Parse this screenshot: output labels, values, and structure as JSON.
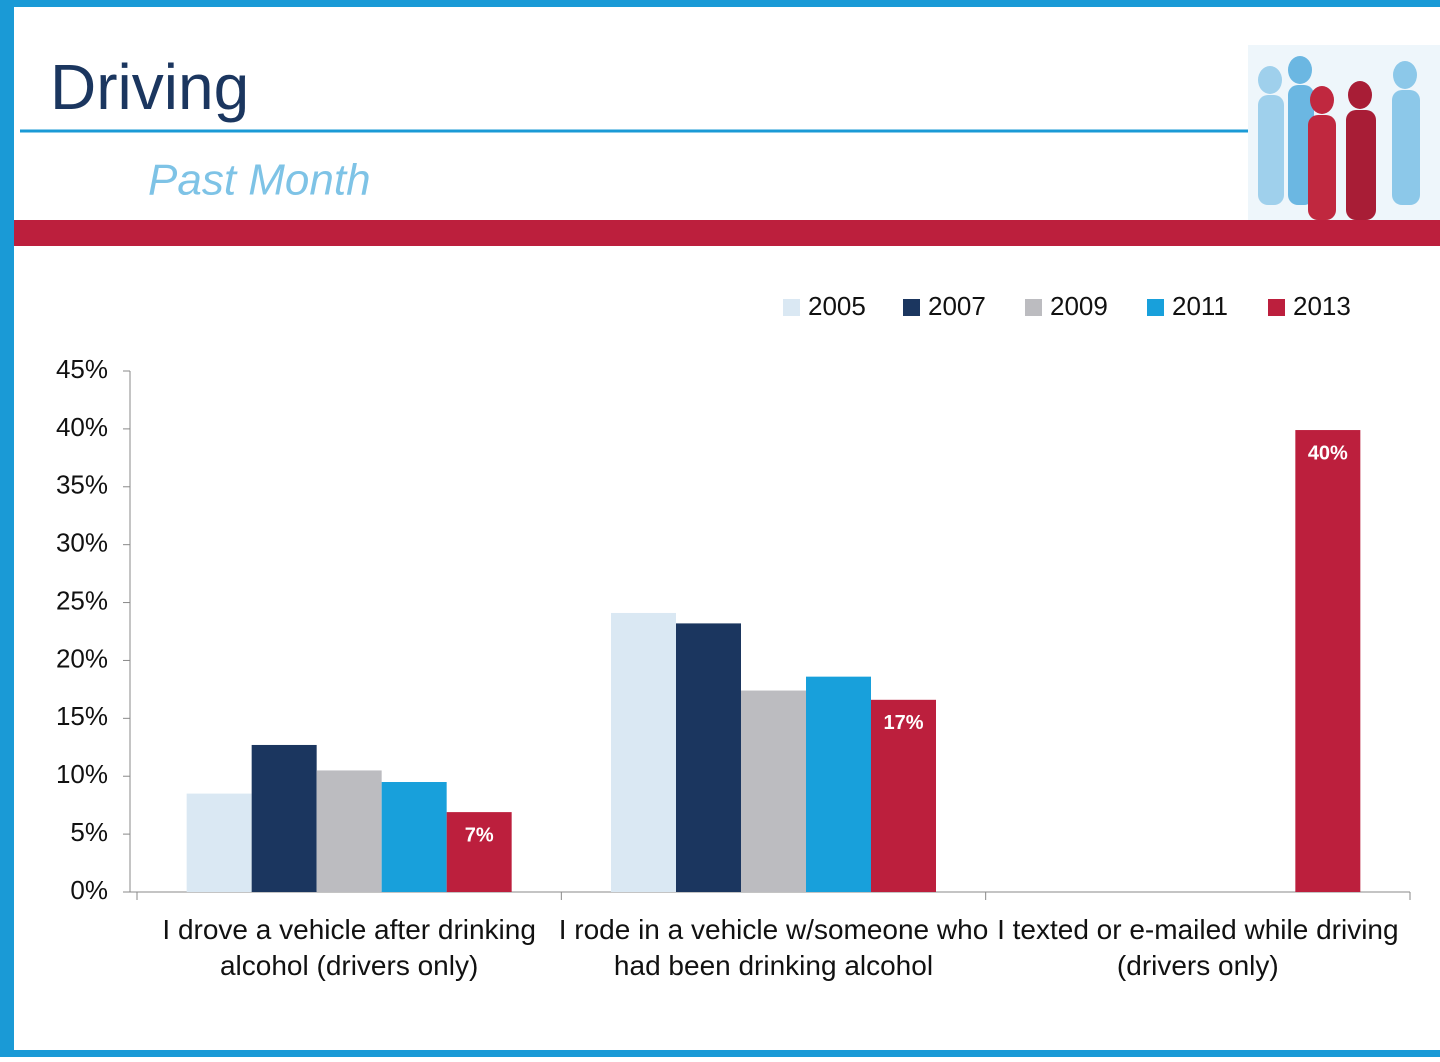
{
  "header": {
    "title": "Driving",
    "subtitle": "Past Month"
  },
  "chart_data": {
    "type": "bar",
    "categories": [
      "I drove a vehicle after drinking alcohol (drivers only)",
      "I rode in a vehicle w/someone who had been drinking alcohol",
      "I texted or e-mailed while driving (drivers only)"
    ],
    "series": [
      {
        "name": "2005",
        "color": "#dae8f3",
        "values": [
          8.5,
          24.1,
          null
        ]
      },
      {
        "name": "2007",
        "color": "#1b365f",
        "values": [
          12.7,
          23.2,
          null
        ]
      },
      {
        "name": "2009",
        "color": "#bcbcc0",
        "values": [
          10.5,
          17.4,
          null
        ]
      },
      {
        "name": "2011",
        "color": "#18a0db",
        "values": [
          9.5,
          18.6,
          null
        ]
      },
      {
        "name": "2013",
        "color": "#bc1f3d",
        "values": [
          6.9,
          16.6,
          39.9
        ],
        "value_labels": [
          "7%",
          "17%",
          "40%"
        ]
      }
    ],
    "ylim": [
      0,
      45
    ],
    "yticks": [
      {
        "value": 0,
        "label": "0%"
      },
      {
        "value": 5,
        "label": "5%"
      },
      {
        "value": 10,
        "label": "10%"
      },
      {
        "value": 15,
        "label": "15%"
      },
      {
        "value": 20,
        "label": "20%"
      },
      {
        "value": 25,
        "label": "25%"
      },
      {
        "value": 30,
        "label": "30%"
      },
      {
        "value": 35,
        "label": "35%"
      },
      {
        "value": 40,
        "label": "40%"
      },
      {
        "value": 45,
        "label": "45%"
      }
    ],
    "legend": "top-right",
    "grid": false
  }
}
